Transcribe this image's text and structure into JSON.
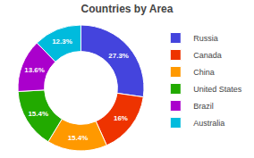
{
  "chart_data": {
    "type": "pie",
    "title": "Countries by Area",
    "categories": [
      "Russia",
      "Canada",
      "China",
      "United States",
      "Brazil",
      "Australia"
    ],
    "values": [
      27.3,
      16.0,
      15.4,
      15.4,
      13.6,
      12.3
    ],
    "value_labels": [
      "27.3%",
      "16%",
      "15.4%",
      "15.4%",
      "13.6%",
      "12.3%"
    ],
    "colors": [
      "#4444dd",
      "#ee3300",
      "#ff9900",
      "#22aa00",
      "#aa00cc",
      "#00bbdd"
    ],
    "data_labels": true,
    "legend": "right"
  }
}
